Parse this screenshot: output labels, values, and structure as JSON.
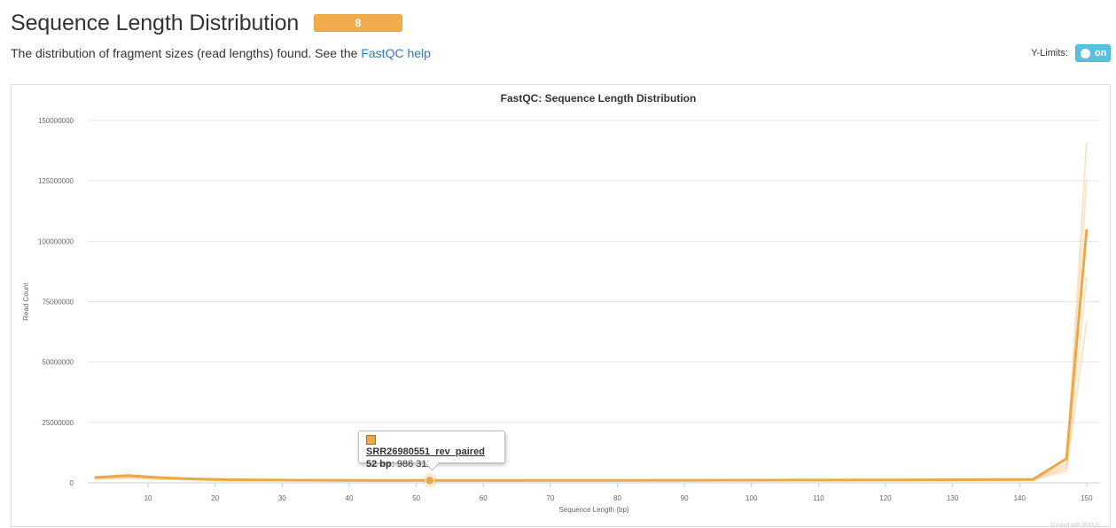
{
  "header": {
    "title": "Sequence Length Distribution",
    "badge": "8",
    "description_prefix": "The distribution of fragment sizes (read lengths) found. See the",
    "help_link": "FastQC help"
  },
  "controls": {
    "ylimits_label": "Y-Limits:",
    "toggle_label": "on"
  },
  "tooltip": {
    "sample": "SRR26980551_rev_paired",
    "x_label": "52 bp",
    "value": "986 311"
  },
  "credit": "Created with MultiQC",
  "colors": {
    "accent": "#f0ad4e",
    "line": "#e8a948",
    "faint_line": "#f6d3a3",
    "toggle": "#5bc0de",
    "link": "#337ab7"
  },
  "chart_data": {
    "type": "line",
    "title": "FastQC: Sequence Length Distribution",
    "xlabel": "Sequence Length (bp)",
    "ylabel": "Read Count",
    "xlim": [
      1,
      152
    ],
    "ylim": [
      0,
      150000000
    ],
    "xticks": [
      "10",
      "20",
      "30",
      "40",
      "50",
      "60",
      "70",
      "80",
      "90",
      "100",
      "110",
      "120",
      "130",
      "140",
      "150"
    ],
    "yticks": [
      "0",
      "25000000",
      "50000000",
      "75000000",
      "100000000",
      "125000000",
      "150000000"
    ],
    "grid": true,
    "highlight": {
      "x": 52,
      "y": 986311
    },
    "series": [
      {
        "name": "SRR26980551_rev_paired",
        "emphasis": true,
        "x": [
          2,
          7,
          12,
          17,
          22,
          27,
          32,
          37,
          42,
          47,
          52,
          57,
          62,
          67,
          72,
          77,
          82,
          87,
          92,
          97,
          102,
          107,
          112,
          117,
          122,
          127,
          132,
          137,
          142,
          147,
          150
        ],
        "y": [
          2200000,
          3000000,
          2100000,
          1600000,
          1300000,
          1200000,
          1100000,
          1050000,
          1000000,
          990000,
          986311,
          980000,
          980000,
          980000,
          990000,
          1000000,
          1000000,
          1050000,
          1050000,
          1100000,
          1100000,
          1150000,
          1150000,
          1200000,
          1200000,
          1250000,
          1300000,
          1350000,
          1400000,
          10000000,
          105000000
        ]
      },
      {
        "name": "",
        "emphasis": false,
        "x": [
          2,
          7,
          12,
          22,
          32,
          42,
          52,
          62,
          72,
          82,
          92,
          102,
          112,
          122,
          132,
          142,
          147,
          150
        ],
        "y": [
          2000000,
          2800000,
          2000000,
          1200000,
          1050000,
          950000,
          950000,
          950000,
          960000,
          980000,
          1000000,
          1050000,
          1100000,
          1150000,
          1200000,
          1300000,
          8000000,
          141000000
        ]
      },
      {
        "name": "",
        "emphasis": false,
        "x": [
          2,
          7,
          12,
          22,
          32,
          42,
          52,
          62,
          72,
          82,
          92,
          102,
          112,
          122,
          132,
          142,
          147,
          150
        ],
        "y": [
          1800000,
          2500000,
          1800000,
          1100000,
          1000000,
          900000,
          900000,
          900000,
          920000,
          940000,
          960000,
          1000000,
          1050000,
          1100000,
          1150000,
          1250000,
          7000000,
          125000000
        ]
      },
      {
        "name": "",
        "emphasis": false,
        "x": [
          2,
          7,
          12,
          22,
          32,
          42,
          52,
          62,
          72,
          82,
          92,
          102,
          112,
          122,
          132,
          142,
          147,
          150
        ],
        "y": [
          1600000,
          2200000,
          1600000,
          1000000,
          950000,
          850000,
          850000,
          850000,
          870000,
          900000,
          920000,
          950000,
          1000000,
          1050000,
          1100000,
          1200000,
          6000000,
          85000000
        ]
      },
      {
        "name": "",
        "emphasis": false,
        "x": [
          2,
          7,
          12,
          22,
          32,
          42,
          52,
          62,
          72,
          82,
          92,
          102,
          112,
          122,
          132,
          142,
          147,
          150
        ],
        "y": [
          1500000,
          2000000,
          1500000,
          950000,
          900000,
          800000,
          800000,
          800000,
          820000,
          850000,
          870000,
          900000,
          950000,
          1000000,
          1050000,
          1150000,
          5000000,
          67000000
        ]
      }
    ]
  }
}
